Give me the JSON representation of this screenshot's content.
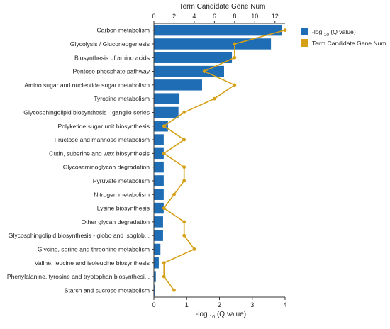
{
  "chart_data": {
    "type": "bar",
    "top_axis": {
      "title": "Term Candidate Gene Num",
      "range": [
        0,
        13
      ],
      "ticks": [
        "0",
        "2",
        "4",
        "6",
        "8",
        "10",
        "12"
      ]
    },
    "bottom_axis": {
      "title_prefix": "-log",
      "title_sub": "10",
      "title_suffix": "(Q value)",
      "range": [
        0,
        4
      ],
      "ticks": [
        "0",
        "1",
        "2",
        "3",
        "4"
      ]
    },
    "categories": [
      "Carbon metabolism",
      "Glycolysis / Gluconeogenesis",
      "Biosynthesis of amino acids",
      "Pentose phosphate pathway",
      "Amino sugar and nucleotide sugar metabolism",
      "Tyrosine metabolism",
      "Glycosphingolipid biosynthesis - ganglio series",
      "Polyketide sugar unit biosynthesis",
      "Fructose and mannose metabolism",
      "Cutin, suberine and wax biosynthesis",
      "Glycosaminoglycan degradation",
      "Pyruvate metabolism",
      "Nitrogen metabolism",
      "Lysine biosynthesis",
      "Other glycan degradation",
      "Glycosphingolipid biosynthesis - globo and isoglob...",
      "Glycine, serine and threonine metabolism",
      "Valine, leucine and isoleucine biosynthesis",
      "Phenylalanine, tyrosine and tryptophan biosynthesi...",
      "Starch and sucrose metabolism"
    ],
    "series": [
      {
        "name": "-log 10 (Q value)",
        "kind": "bar",
        "axis": "bottom",
        "color": "#1f6db5",
        "values": [
          3.9,
          3.57,
          2.38,
          2.14,
          1.47,
          0.78,
          0.75,
          0.43,
          0.3,
          0.3,
          0.3,
          0.3,
          0.3,
          0.3,
          0.28,
          0.28,
          0.2,
          0.15,
          0.06,
          0.02
        ]
      },
      {
        "name": "Term Candidate Gene Num",
        "kind": "line",
        "axis": "top",
        "color": "#d4a017",
        "values": [
          13,
          8,
          8,
          5,
          8,
          6,
          3,
          1,
          3,
          1,
          3,
          3,
          2,
          1,
          3,
          3,
          4,
          1,
          1,
          2
        ]
      }
    ],
    "legend": {
      "position": "top-right",
      "bar_label_prefix": "-log",
      "bar_label_sub": "10",
      "bar_label_suffix": "(Q value)",
      "line_label": "Term Candidate Gene Num"
    },
    "grid": false
  }
}
